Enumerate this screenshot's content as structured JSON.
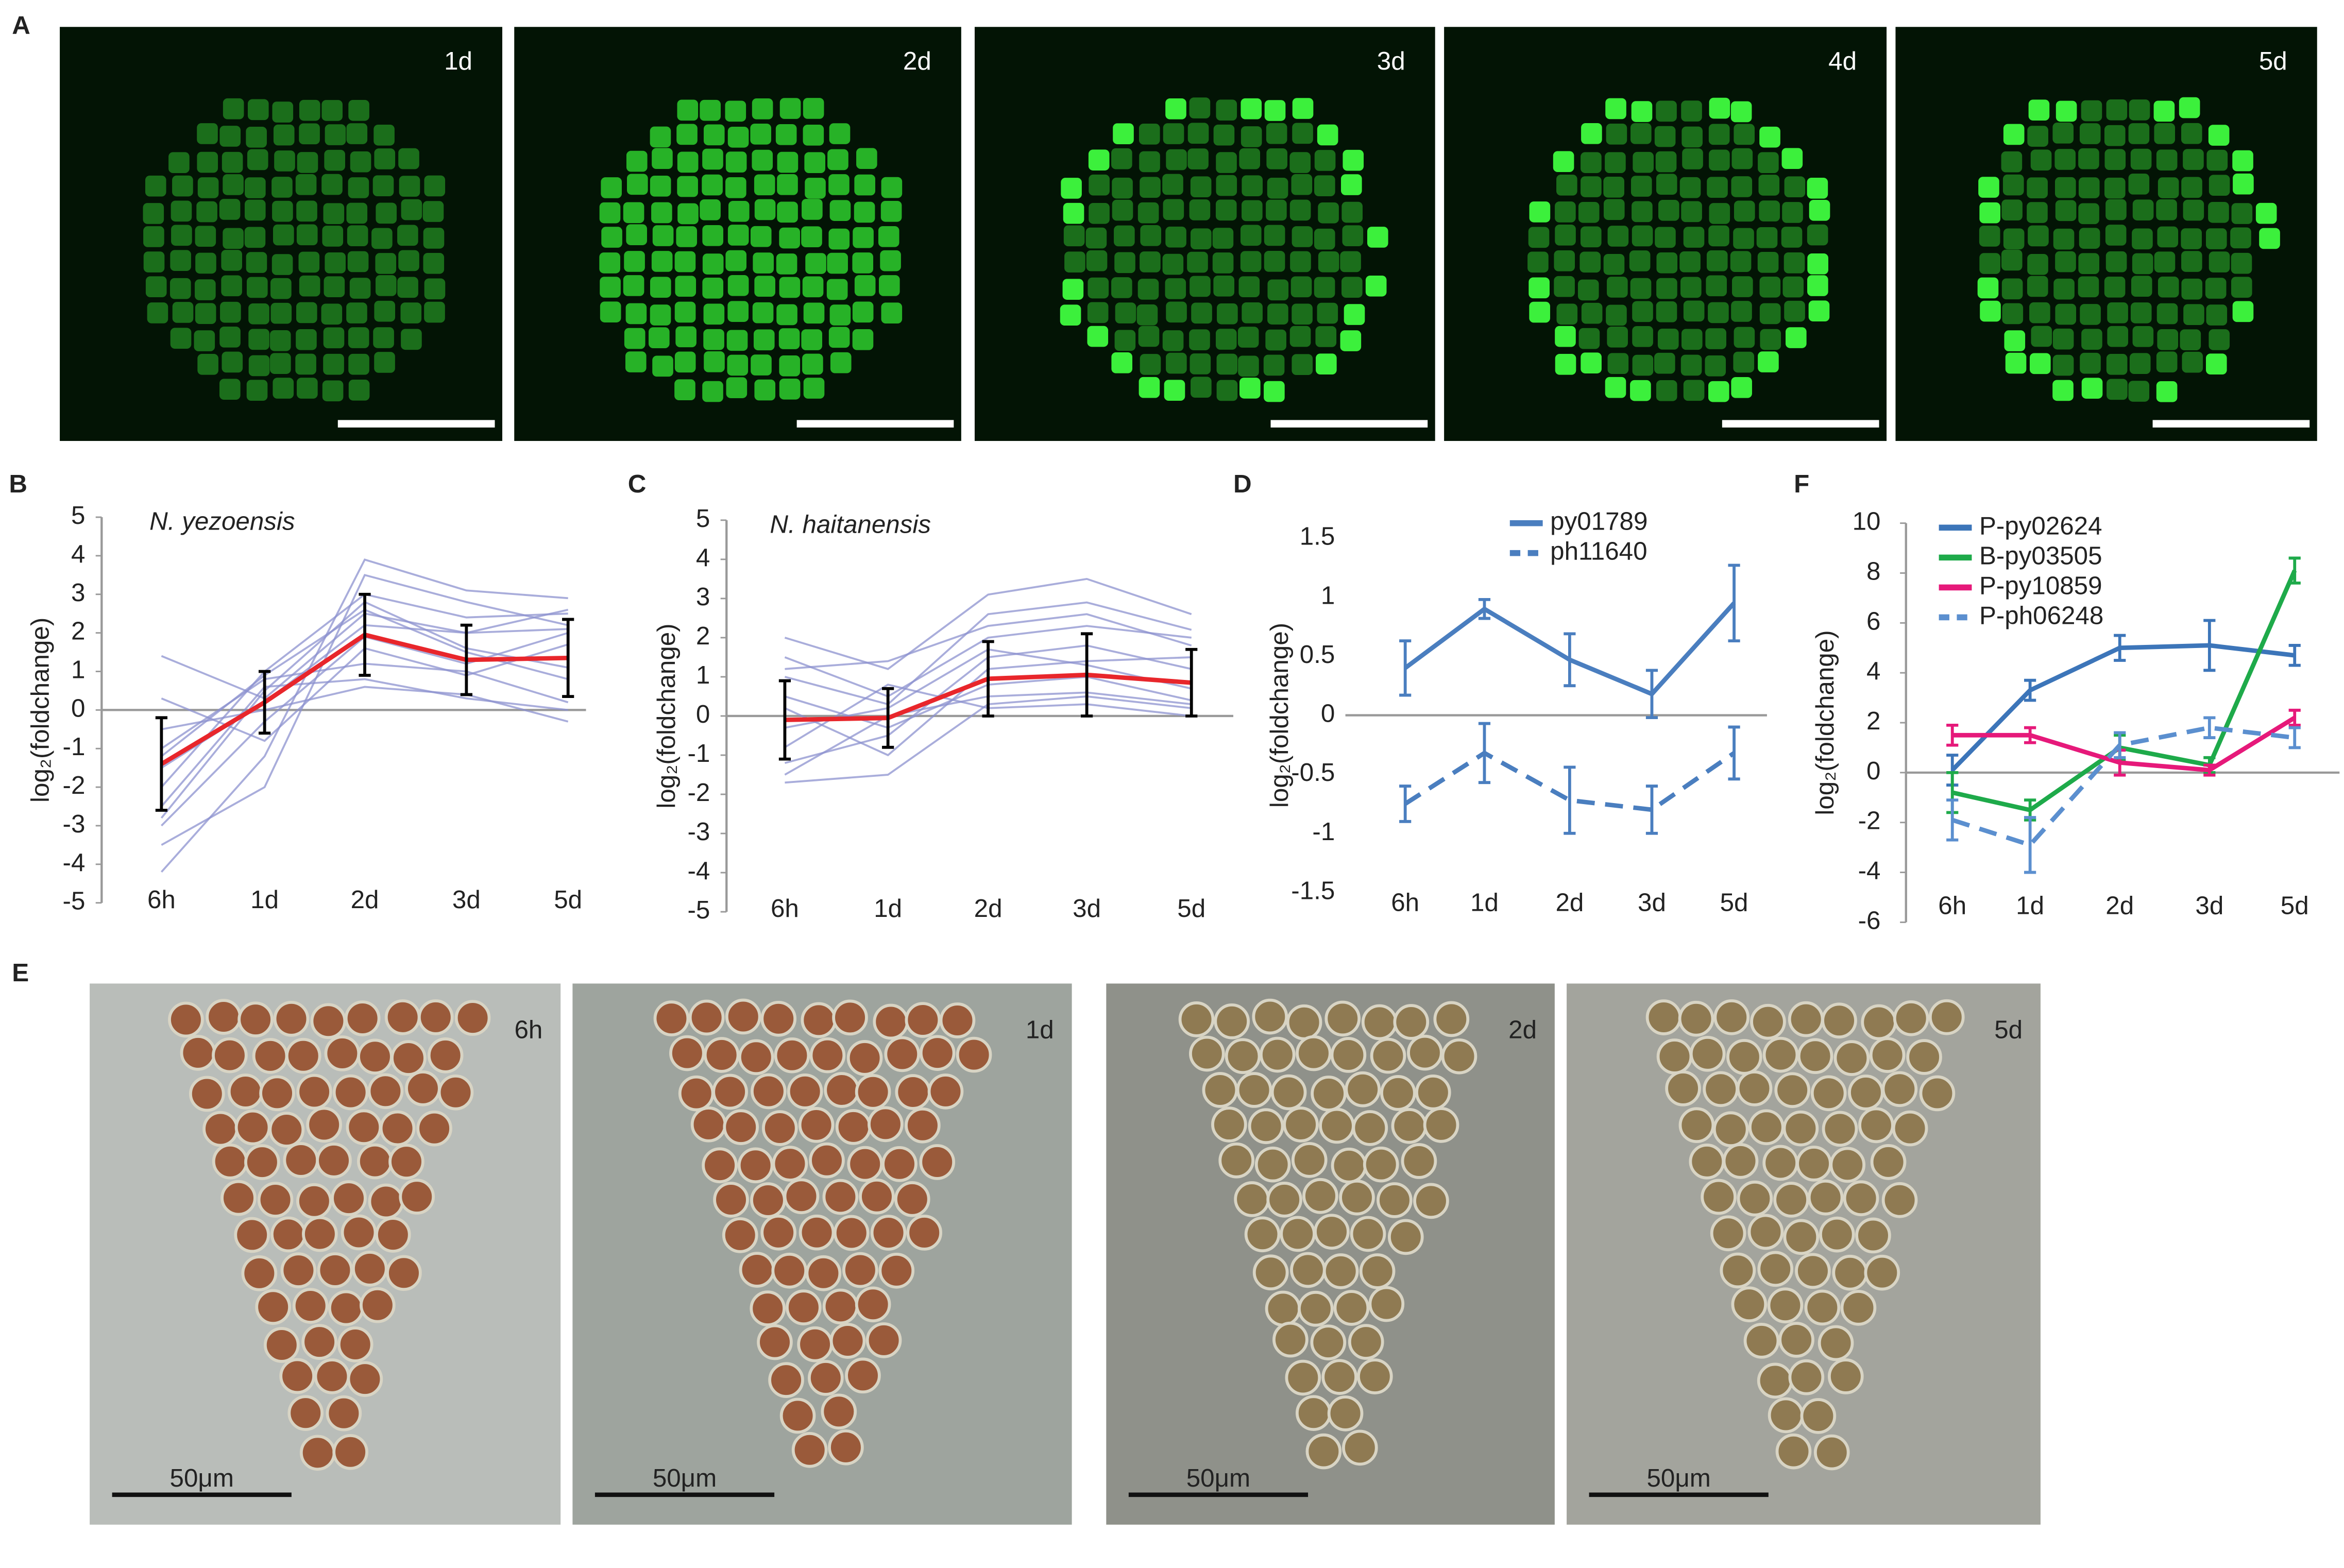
{
  "image_panels": [
    {
      "label": "A",
      "tags": [
        "1d",
        "2d",
        "3d",
        "4d",
        "5d"
      ]
    },
    {
      "label": "E",
      "tags": [
        "6h",
        "1d",
        "2d",
        "5d"
      ],
      "scale_labels": [
        "50μm",
        "50μm",
        "50μm",
        "50μm"
      ]
    }
  ],
  "chart_data": [
    {
      "type": "line",
      "label": "B",
      "title": "N. yezoensis",
      "y_label": "log₂(foldchange)",
      "categories": [
        "6h",
        "1d",
        "2d",
        "3d",
        "5d"
      ],
      "ylim": [
        -5,
        5
      ],
      "yticks": [
        -5,
        -4,
        -3,
        -2,
        -1,
        0,
        1,
        2,
        3,
        4,
        5
      ],
      "series": [
        {
          "color": "#8c91cf",
          "values": [
            1.4,
            0.3,
            2.5,
            2.0,
            2.1
          ]
        },
        {
          "color": "#8c91cf",
          "values": [
            -4.2,
            -1.2,
            3.9,
            3.1,
            2.9
          ]
        },
        {
          "color": "#8c91cf",
          "values": [
            -3.5,
            -2.0,
            3.5,
            2.8,
            2.2
          ]
        },
        {
          "color": "#8c91cf",
          "values": [
            -2.8,
            0.5,
            2.8,
            1.6,
            1.1
          ]
        },
        {
          "color": "#8c91cf",
          "values": [
            -1.0,
            0.8,
            1.2,
            1.0,
            0.2
          ]
        },
        {
          "color": "#8c91cf",
          "values": [
            -2.0,
            1.0,
            3.0,
            2.4,
            2.5
          ]
        },
        {
          "color": "#8c91cf",
          "values": [
            0.3,
            -0.8,
            1.6,
            0.9,
            1.7
          ]
        },
        {
          "color": "#8c91cf",
          "values": [
            -1.5,
            0.2,
            2.2,
            2.0,
            2.6
          ]
        },
        {
          "color": "#8c91cf",
          "values": [
            -0.5,
            0.0,
            0.6,
            0.4,
            -0.3
          ]
        },
        {
          "color": "#8c91cf",
          "values": [
            -3.0,
            -0.3,
            1.9,
            1.2,
            2.0
          ]
        },
        {
          "color": "#8c91cf",
          "values": [
            -2.5,
            0.6,
            0.8,
            0.3,
            0.0
          ]
        },
        {
          "color": "#8c91cf",
          "values": [
            -1.2,
            0.9,
            2.6,
            1.5,
            0.8
          ]
        },
        {
          "color": "#e8262b",
          "error_color": "#000000",
          "values": [
            -1.4,
            0.2,
            1.95,
            1.3,
            1.35
          ],
          "errors": [
            1.2,
            0.8,
            1.05,
            0.9,
            1.0
          ]
        }
      ]
    },
    {
      "type": "line",
      "label": "C",
      "title": "N. haitanensis",
      "y_label": "log₂(foldchange)",
      "categories": [
        "6h",
        "1d",
        "2d",
        "3d",
        "5d"
      ],
      "ylim": [
        -5,
        5
      ],
      "yticks": [
        -5,
        -4,
        -3,
        -2,
        -1,
        0,
        1,
        2,
        3,
        4,
        5
      ],
      "series": [
        {
          "color": "#8c91cf",
          "values": [
            2.0,
            1.2,
            3.1,
            3.5,
            2.6
          ]
        },
        {
          "color": "#8c91cf",
          "values": [
            -1.7,
            -1.5,
            0.3,
            0.5,
            0.2
          ]
        },
        {
          "color": "#8c91cf",
          "values": [
            1.0,
            0.3,
            2.6,
            2.9,
            2.2
          ]
        },
        {
          "color": "#8c91cf",
          "values": [
            -1.2,
            -0.5,
            1.5,
            1.8,
            1.2
          ]
        },
        {
          "color": "#8c91cf",
          "values": [
            0.5,
            -0.3,
            0.8,
            1.0,
            0.4
          ]
        },
        {
          "color": "#8c91cf",
          "values": [
            1.5,
            0.5,
            2.0,
            2.3,
            2.0
          ]
        },
        {
          "color": "#8c91cf",
          "values": [
            -0.8,
            0.8,
            0.2,
            0.3,
            0.0
          ]
        },
        {
          "color": "#8c91cf",
          "values": [
            0.2,
            -1.0,
            1.2,
            1.4,
            1.5
          ]
        },
        {
          "color": "#8c91cf",
          "values": [
            -1.5,
            0.0,
            0.5,
            0.6,
            0.3
          ]
        },
        {
          "color": "#8c91cf",
          "values": [
            1.2,
            1.4,
            2.3,
            2.6,
            1.8
          ]
        },
        {
          "color": "#8c91cf",
          "values": [
            -0.3,
            0.2,
            1.7,
            1.3,
            0.7
          ]
        },
        {
          "color": "#e8262b",
          "error_color": "#000000",
          "values": [
            -0.1,
            -0.05,
            0.95,
            1.05,
            0.85
          ],
          "errors": [
            1.0,
            0.75,
            0.95,
            1.05,
            0.85
          ]
        }
      ]
    },
    {
      "type": "line",
      "label": "D",
      "y_label": "log₂(foldchange)",
      "categories": [
        "6h",
        "1d",
        "2d",
        "3d",
        "5d"
      ],
      "ylim": [
        -1.5,
        1.5
      ],
      "yticks": [
        -1.5,
        -1,
        -0.5,
        0,
        0.5,
        1,
        1.5
      ],
      "series": [
        {
          "name": "py01789",
          "color": "#4a7ebf",
          "values": [
            0.4,
            0.9,
            0.47,
            0.18,
            0.95
          ],
          "errors": [
            0.23,
            0.08,
            0.22,
            0.2,
            0.32
          ]
        },
        {
          "name": "ph11640",
          "color": "#4a7ebf",
          "dash": true,
          "values": [
            -0.75,
            -0.32,
            -0.72,
            -0.8,
            -0.32
          ],
          "errors": [
            0.15,
            0.25,
            0.28,
            0.2,
            0.22
          ]
        }
      ]
    },
    {
      "type": "line",
      "label": "F",
      "y_label": "log₂(foldchange)",
      "categories": [
        "6h",
        "1d",
        "2d",
        "3d",
        "5d"
      ],
      "ylim": [
        -6,
        10
      ],
      "yticks": [
        -6,
        -4,
        -2,
        0,
        2,
        4,
        6,
        8,
        10
      ],
      "series": [
        {
          "name": "P-py02624",
          "color": "#3c75b9",
          "values": [
            0.1,
            3.3,
            5.0,
            5.1,
            4.7
          ],
          "errors": [
            0.6,
            0.4,
            0.5,
            1.0,
            0.4
          ]
        },
        {
          "name": "B-py03505",
          "color": "#1eaa4a",
          "values": [
            -0.8,
            -1.5,
            1.0,
            0.3,
            8.1
          ],
          "errors": [
            0.8,
            0.4,
            0.5,
            0.3,
            0.5
          ]
        },
        {
          "name": "P-py10859",
          "color": "#e6197a",
          "values": [
            1.5,
            1.5,
            0.4,
            0.1,
            2.2
          ],
          "errors": [
            0.4,
            0.3,
            0.5,
            0.2,
            0.3
          ]
        },
        {
          "name": "P-ph06248",
          "color": "#5b8fcf",
          "dash": true,
          "values": [
            -1.9,
            -2.9,
            1.1,
            1.8,
            1.4
          ],
          "errors": [
            0.8,
            1.1,
            0.5,
            0.4,
            0.4
          ]
        }
      ]
    }
  ]
}
